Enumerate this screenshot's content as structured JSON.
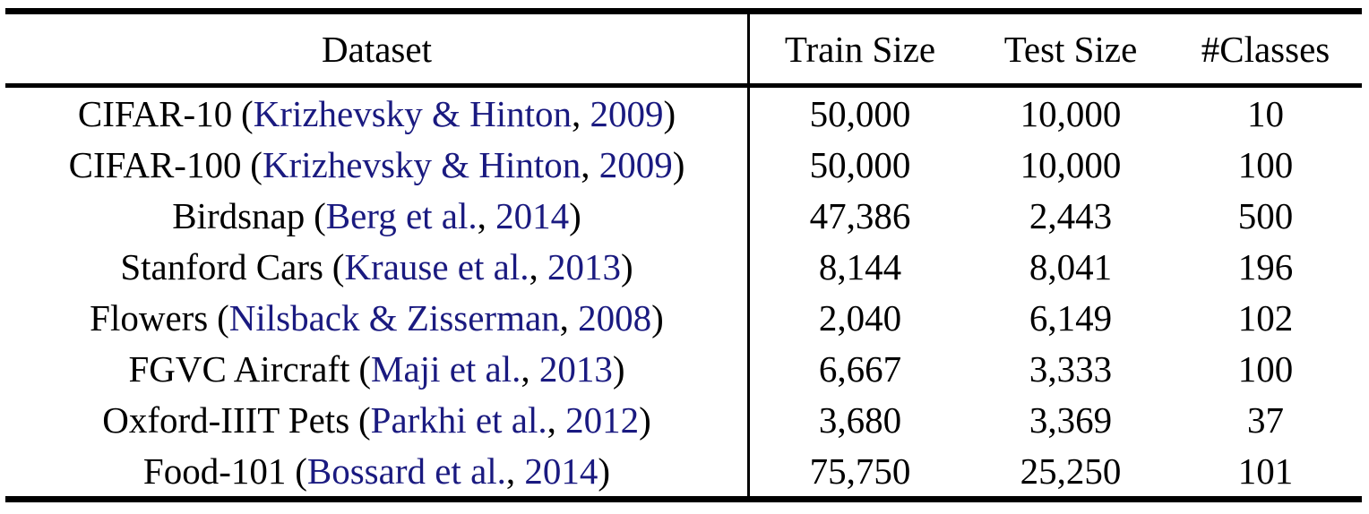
{
  "punct": {
    "open": "(",
    "comma": ", ",
    "close": ")"
  },
  "colors": {
    "citation_link": "#1a1a80",
    "text": "#000000",
    "rule": "#000000",
    "background": "#ffffff"
  },
  "table": {
    "columns": [
      {
        "label": "Dataset"
      },
      {
        "label": "Train Size"
      },
      {
        "label": "Test Size"
      },
      {
        "label": "#Classes"
      }
    ],
    "rows": [
      {
        "dataset": "CIFAR-10",
        "authors": "Krizhevsky & Hinton",
        "year": "2009",
        "train": "50,000",
        "test": "10,000",
        "classes": "10"
      },
      {
        "dataset": "CIFAR-100",
        "authors": "Krizhevsky & Hinton",
        "year": "2009",
        "train": "50,000",
        "test": "10,000",
        "classes": "100"
      },
      {
        "dataset": "Birdsnap",
        "authors": "Berg et al.",
        "year": "2014",
        "train": "47,386",
        "test": "2,443",
        "classes": "500"
      },
      {
        "dataset": "Stanford Cars",
        "authors": "Krause et al.",
        "year": "2013",
        "train": "8,144",
        "test": "8,041",
        "classes": "196"
      },
      {
        "dataset": "Flowers",
        "authors": "Nilsback & Zisserman",
        "year": "2008",
        "train": "2,040",
        "test": "6,149",
        "classes": "102"
      },
      {
        "dataset": "FGVC Aircraft",
        "authors": "Maji et al.",
        "year": "2013",
        "train": "6,667",
        "test": "3,333",
        "classes": "100"
      },
      {
        "dataset": "Oxford-IIIT Pets",
        "authors": "Parkhi et al.",
        "year": "2012",
        "train": "3,680",
        "test": "3,369",
        "classes": "37"
      },
      {
        "dataset": "Food-101",
        "authors": "Bossard et al.",
        "year": "2014",
        "train": "75,750",
        "test": "25,250",
        "classes": "101"
      }
    ]
  }
}
